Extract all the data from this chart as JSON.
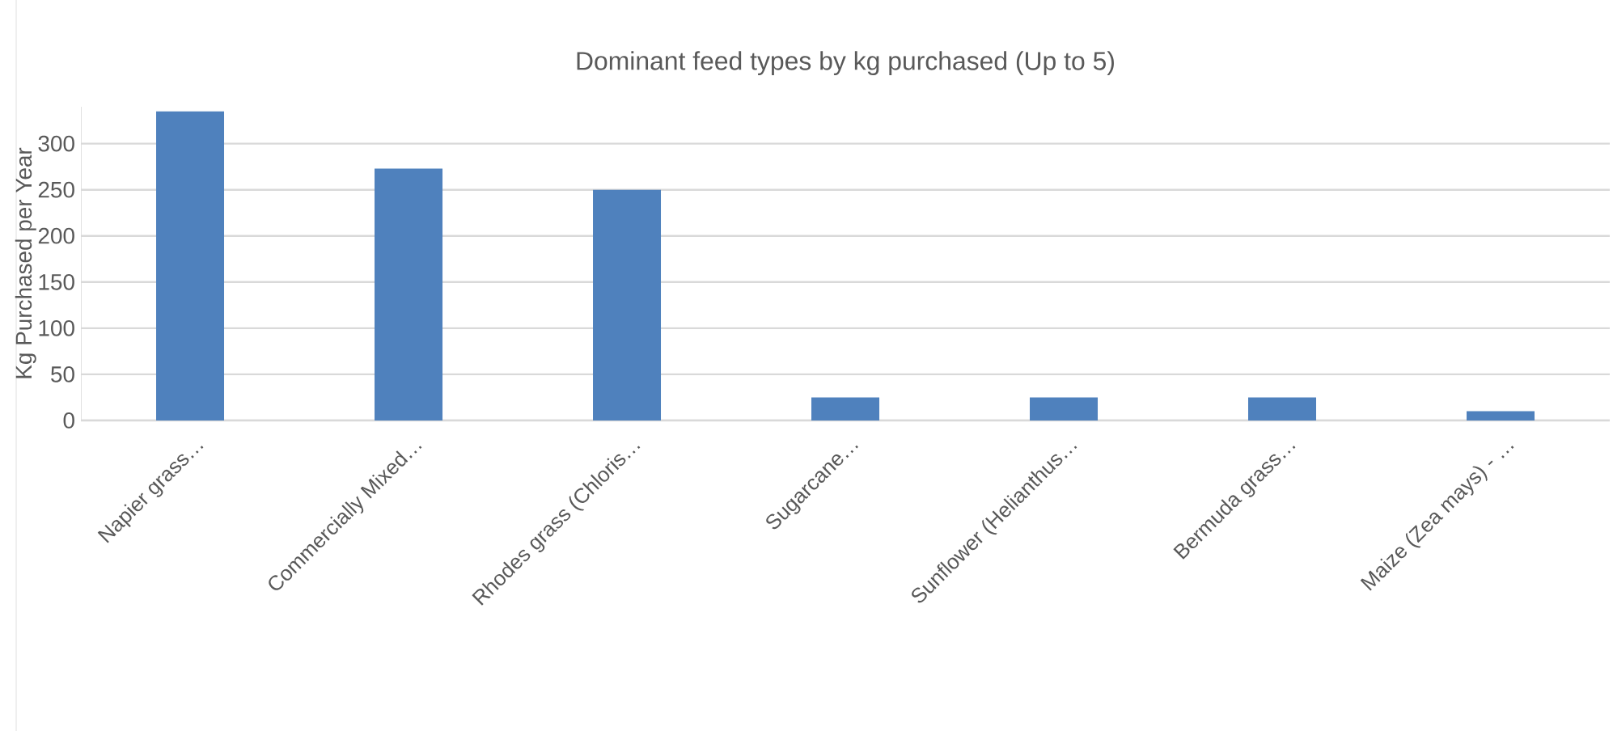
{
  "chart_data": {
    "type": "bar",
    "title": "Dominant feed types by kg purchased (Up to 5)",
    "ylabel": "Kg Purchased per Year",
    "categories": [
      "Napier grass…",
      "Commercially Mixed…",
      "Rhodes grass (Chloris…",
      "Sugarcane…",
      "Sunflower (Helianthus…",
      "Bermuda grass…",
      "Maize (Zea mays) - …"
    ],
    "values": [
      335,
      273,
      250,
      25,
      25,
      25,
      10
    ],
    "color": "#4f81bd",
    "ylim": [
      0,
      340
    ],
    "yticks": [
      0,
      50,
      100,
      150,
      200,
      250,
      300
    ],
    "grid": "y"
  }
}
